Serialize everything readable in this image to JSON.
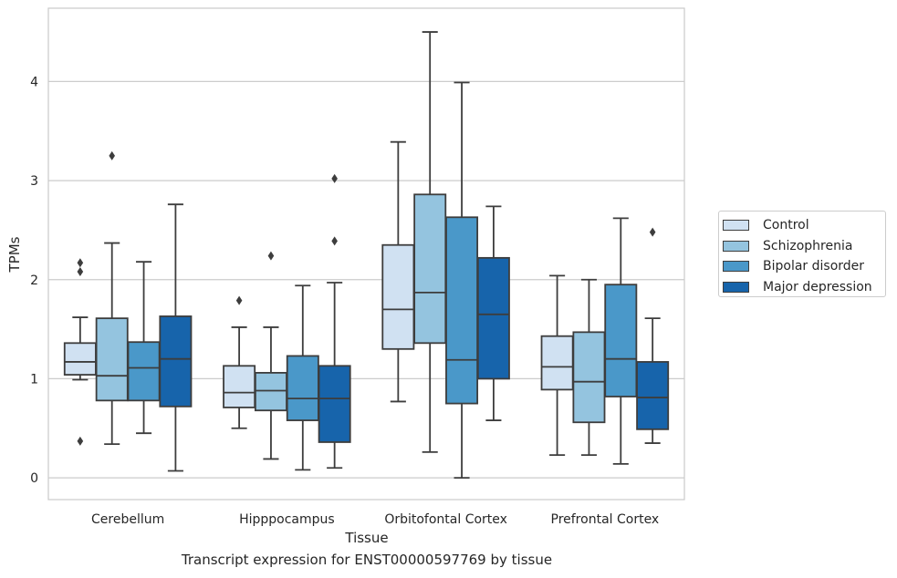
{
  "chart_data": {
    "type": "box",
    "title": "",
    "caption": "Transcript expression for ENST00000597769 by tissue",
    "xlabel": "Tissue",
    "ylabel": "TPMs",
    "ylim": [
      -0.22,
      4.74
    ],
    "yticks": [
      0,
      1,
      2,
      3,
      4
    ],
    "grid": "horizontal",
    "legend_position": "right",
    "categories": [
      "Cerebellum",
      "Hipppocampus",
      "Orbitofontal Cortex",
      "Prefrontal Cortex"
    ],
    "series": [
      {
        "name": "Control",
        "color": "#d0e1f2",
        "boxes": [
          {
            "min": 0.99,
            "q1": 1.04,
            "median": 1.17,
            "q3": 1.36,
            "max": 1.62,
            "outliers": [
              2.08,
              2.17,
              0.37
            ]
          },
          {
            "min": 0.5,
            "q1": 0.71,
            "median": 0.86,
            "q3": 1.13,
            "max": 1.52,
            "outliers": [
              1.79
            ]
          },
          {
            "min": 0.77,
            "q1": 1.3,
            "median": 1.7,
            "q3": 2.35,
            "max": 3.39,
            "outliers": []
          },
          {
            "min": 0.23,
            "q1": 0.89,
            "median": 1.12,
            "q3": 1.43,
            "max": 2.04,
            "outliers": []
          }
        ]
      },
      {
        "name": "Schizophrenia",
        "color": "#94c4df",
        "boxes": [
          {
            "min": 0.34,
            "q1": 0.78,
            "median": 1.03,
            "q3": 1.61,
            "max": 2.37,
            "outliers": [
              3.25
            ]
          },
          {
            "min": 0.19,
            "q1": 0.68,
            "median": 0.88,
            "q3": 1.06,
            "max": 1.52,
            "outliers": [
              2.24
            ]
          },
          {
            "min": 0.26,
            "q1": 1.36,
            "median": 1.87,
            "q3": 2.86,
            "max": 4.5,
            "outliers": []
          },
          {
            "min": 0.23,
            "q1": 0.56,
            "median": 0.97,
            "q3": 1.47,
            "max": 2.0,
            "outliers": []
          }
        ]
      },
      {
        "name": "Bipolar disorder",
        "color": "#4a98c9",
        "boxes": [
          {
            "min": 0.45,
            "q1": 0.78,
            "median": 1.11,
            "q3": 1.37,
            "max": 2.18,
            "outliers": []
          },
          {
            "min": 0.08,
            "q1": 0.58,
            "median": 0.8,
            "q3": 1.23,
            "max": 1.94,
            "outliers": []
          },
          {
            "min": 0.0,
            "q1": 0.75,
            "median": 1.19,
            "q3": 2.63,
            "max": 3.99,
            "outliers": []
          },
          {
            "min": 0.14,
            "q1": 0.82,
            "median": 1.2,
            "q3": 1.95,
            "max": 2.62,
            "outliers": []
          }
        ]
      },
      {
        "name": "Major depression",
        "color": "#1764ab",
        "boxes": [
          {
            "min": 0.07,
            "q1": 0.72,
            "median": 1.2,
            "q3": 1.63,
            "max": 2.76,
            "outliers": []
          },
          {
            "min": 0.1,
            "q1": 0.36,
            "median": 0.8,
            "q3": 1.13,
            "max": 1.97,
            "outliers": [
              2.39,
              3.02
            ]
          },
          {
            "min": 0.58,
            "q1": 1.0,
            "median": 1.65,
            "q3": 2.22,
            "max": 2.74,
            "outliers": []
          },
          {
            "min": 0.35,
            "q1": 0.49,
            "median": 0.81,
            "q3": 1.17,
            "max": 1.61,
            "outliers": [
              2.48
            ]
          }
        ]
      }
    ]
  }
}
